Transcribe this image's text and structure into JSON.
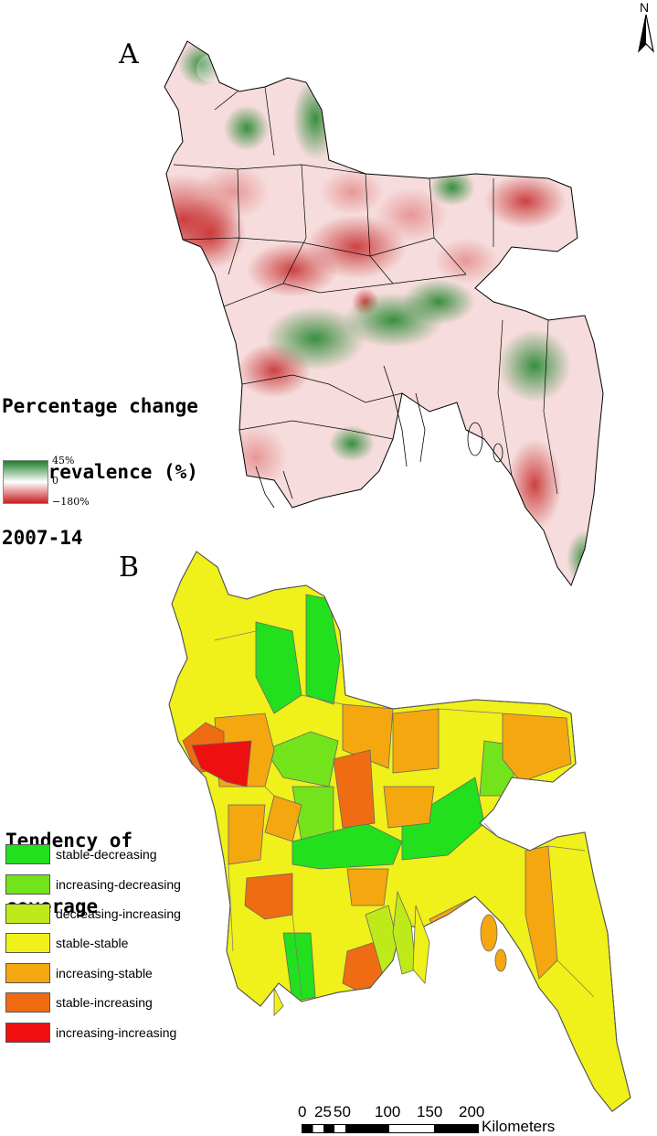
{
  "north_arrow": {
    "label": "N"
  },
  "panel_a": {
    "label": "A",
    "legend": {
      "title_lines": [
        "Percentage change",
        "of prevalence (%)",
        "2007-14"
      ],
      "max_label": "45%",
      "mid_label": "0",
      "min_label": "−180%",
      "colors": {
        "max": "#1e7f2a",
        "mid": "#ffffff",
        "min": "#c81e1e"
      }
    }
  },
  "panel_b": {
    "label": "B",
    "legend": {
      "title_lines": [
        "Tendency of",
        "coverage"
      ],
      "items": [
        {
          "label": "stable-decreasing",
          "color": "#22e01e"
        },
        {
          "label": "increasing-decreasing",
          "color": "#73e41c"
        },
        {
          "label": "decreasing-increasing",
          "color": "#bfea1a"
        },
        {
          "label": "stable-stable",
          "color": "#f0f01a"
        },
        {
          "label": "increasing-stable",
          "color": "#f5a70f"
        },
        {
          "label": "stable-increasing",
          "color": "#f06c12"
        },
        {
          "label": "increasing-increasing",
          "color": "#ee1010"
        }
      ]
    }
  },
  "scale_bar": {
    "ticks": [
      "0",
      "25",
      "50",
      "100",
      "150",
      "200"
    ],
    "unit": "Kilometers"
  }
}
